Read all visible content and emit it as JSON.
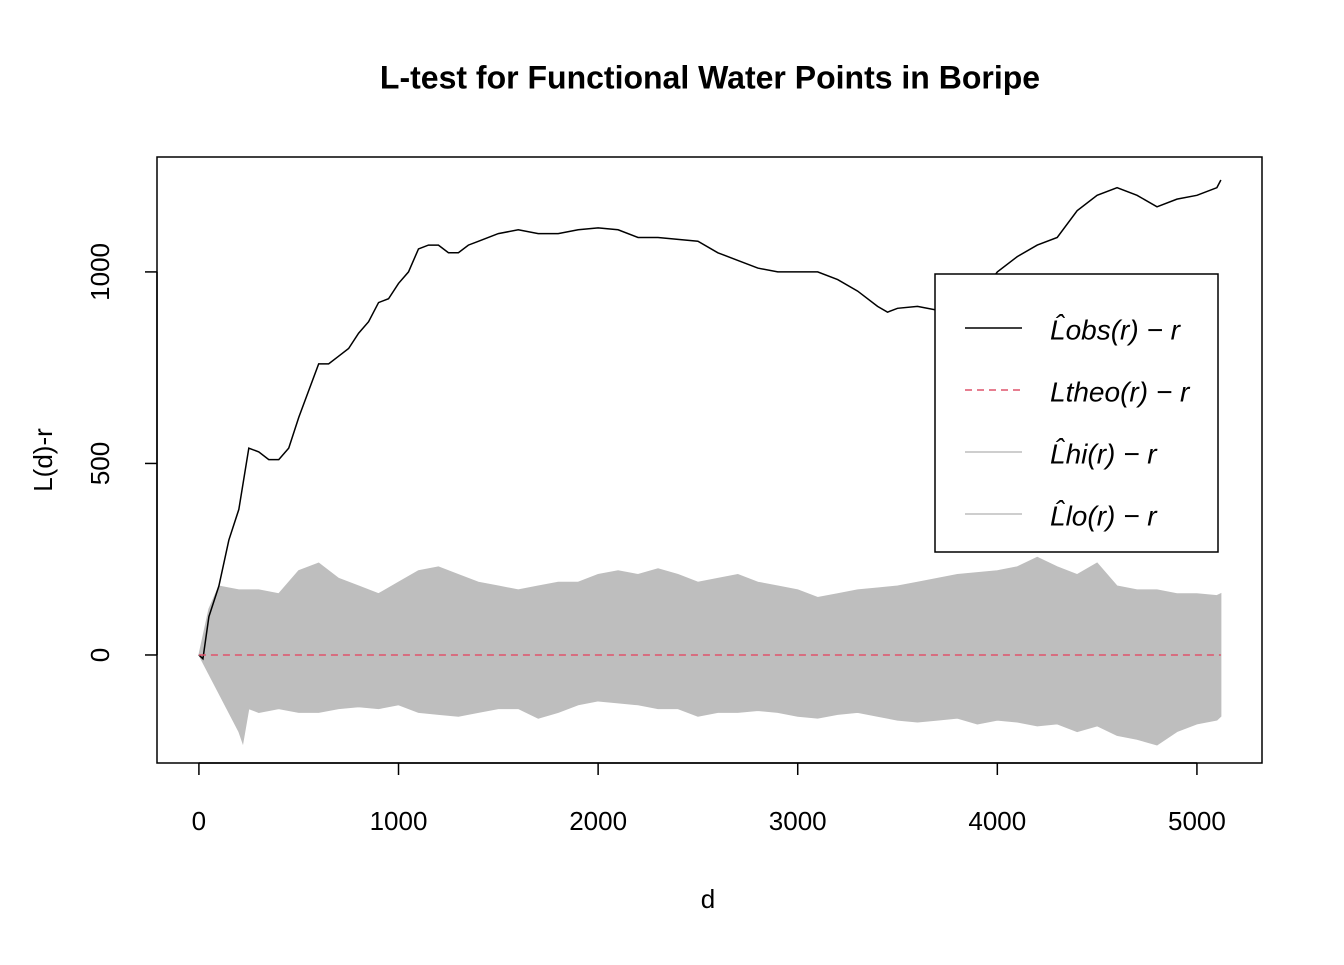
{
  "chart_data": {
    "type": "line",
    "title": "L-test for Functional Water Points in Boripe",
    "x_label": "d",
    "y_label": "L(d)-r",
    "xlim": [
      -210,
      5326
    ],
    "ylim": [
      -282,
      1300
    ],
    "xticks": [
      0,
      1000,
      2000,
      3000,
      4000,
      5000
    ],
    "yticks": [
      0,
      500,
      1000
    ],
    "series": [
      {
        "name": "L̂obs(r) − r",
        "color": "#000000",
        "style": "solid",
        "x": [
          0,
          20,
          50,
          100,
          150,
          200,
          250,
          300,
          350,
          400,
          450,
          500,
          550,
          600,
          650,
          700,
          750,
          800,
          850,
          900,
          950,
          1000,
          1050,
          1100,
          1150,
          1200,
          1250,
          1300,
          1350,
          1400,
          1500,
          1600,
          1700,
          1800,
          1900,
          2000,
          2100,
          2200,
          2300,
          2400,
          2500,
          2600,
          2700,
          2800,
          2900,
          3000,
          3100,
          3200,
          3300,
          3400,
          3450,
          3500,
          3600,
          3700,
          3800,
          3900,
          4000,
          4100,
          4200,
          4300,
          4400,
          4500,
          4600,
          4700,
          4800,
          4900,
          5000,
          5100,
          5120
        ],
        "values": [
          0,
          -10,
          100,
          180,
          300,
          380,
          540,
          530,
          510,
          510,
          540,
          620,
          690,
          760,
          760,
          780,
          800,
          840,
          870,
          920,
          930,
          970,
          1000,
          1060,
          1070,
          1070,
          1050,
          1050,
          1070,
          1080,
          1100,
          1110,
          1100,
          1100,
          1110,
          1115,
          1110,
          1090,
          1090,
          1085,
          1080,
          1050,
          1030,
          1010,
          1000,
          1000,
          1000,
          980,
          950,
          910,
          895,
          905,
          910,
          900,
          910,
          930,
          1000,
          1040,
          1070,
          1090,
          1160,
          1200,
          1220,
          1200,
          1170,
          1190,
          1200,
          1220,
          1240
        ]
      },
      {
        "name": "Ltheo(r) − r",
        "color": "#DF536B",
        "style": "dashed",
        "x": [
          0,
          5120
        ],
        "values": [
          0,
          0
        ]
      },
      {
        "name": "L̂hi(r) − r",
        "color": "#BEBEBE",
        "style": "band",
        "x": [
          0,
          50,
          100,
          200,
          300,
          400,
          500,
          600,
          700,
          800,
          900,
          1000,
          1100,
          1200,
          1300,
          1400,
          1500,
          1600,
          1700,
          1800,
          1900,
          2000,
          2100,
          2200,
          2300,
          2400,
          2500,
          2600,
          2700,
          2800,
          2900,
          3000,
          3100,
          3200,
          3300,
          3400,
          3500,
          3600,
          3700,
          3800,
          3900,
          4000,
          4100,
          4200,
          4300,
          4400,
          4500,
          4600,
          4700,
          4800,
          4900,
          5000,
          5100,
          5120
        ],
        "values": [
          0,
          120,
          180,
          170,
          170,
          160,
          220,
          240,
          200,
          180,
          160,
          190,
          220,
          230,
          210,
          190,
          180,
          170,
          180,
          190,
          190,
          210,
          220,
          210,
          225,
          210,
          190,
          200,
          210,
          190,
          180,
          170,
          150,
          160,
          170,
          175,
          180,
          190,
          200,
          210,
          215,
          220,
          230,
          255,
          230,
          210,
          240,
          180,
          170,
          170,
          160,
          160,
          155,
          160
        ]
      },
      {
        "name": "L̂lo(r) − r",
        "color": "#BEBEBE",
        "style": "band",
        "x": [
          0,
          50,
          100,
          200,
          220,
          250,
          300,
          400,
          500,
          600,
          700,
          800,
          900,
          1000,
          1100,
          1200,
          1300,
          1400,
          1500,
          1600,
          1700,
          1800,
          1900,
          2000,
          2100,
          2200,
          2300,
          2400,
          2500,
          2600,
          2700,
          2800,
          2900,
          3000,
          3100,
          3200,
          3300,
          3400,
          3500,
          3600,
          3700,
          3800,
          3900,
          4000,
          4100,
          4200,
          4300,
          4400,
          4500,
          4600,
          4700,
          4800,
          4900,
          5000,
          5100,
          5120
        ],
        "values": [
          0,
          -50,
          -100,
          -200,
          -230,
          -140,
          -150,
          -140,
          -150,
          -150,
          -140,
          -135,
          -140,
          -130,
          -150,
          -155,
          -160,
          -150,
          -140,
          -140,
          -165,
          -150,
          -130,
          -120,
          -125,
          -130,
          -140,
          -140,
          -160,
          -150,
          -150,
          -145,
          -150,
          -160,
          -165,
          -155,
          -150,
          -160,
          -170,
          -175,
          -170,
          -165,
          -180,
          -170,
          -175,
          -185,
          -180,
          -200,
          -185,
          -210,
          -220,
          -235,
          -200,
          -180,
          -170,
          -160
        ]
      }
    ]
  }
}
